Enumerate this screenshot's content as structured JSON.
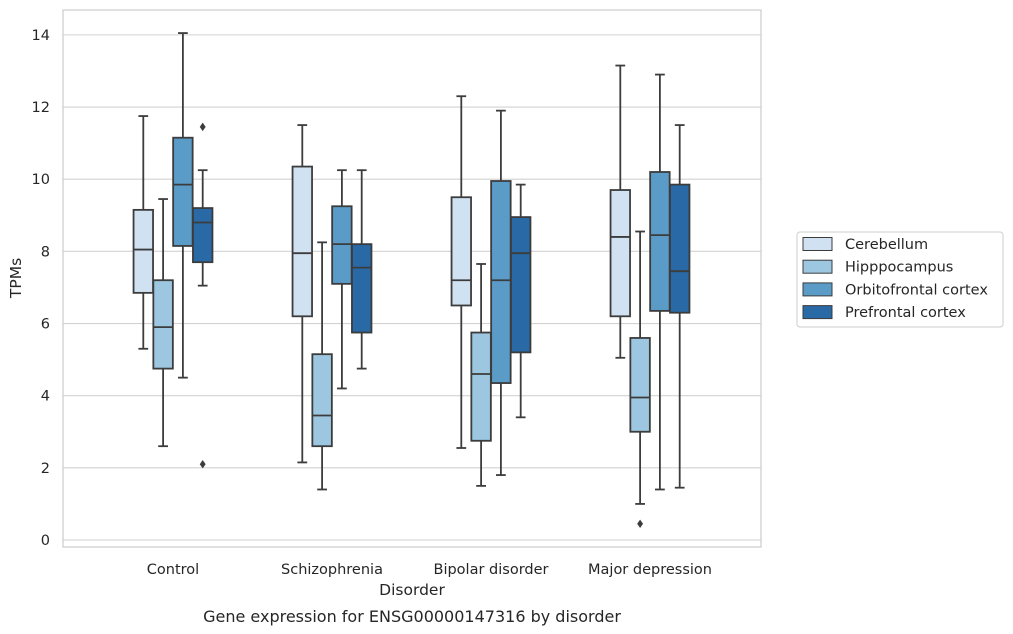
{
  "chart_data": {
    "type": "boxplot",
    "title": "Gene expression for ENSG00000147316 by disorder",
    "xlabel": "Disorder",
    "ylabel": "TPMs",
    "ylim": [
      -0.2,
      14.7
    ],
    "yticks": [
      0,
      2,
      4,
      6,
      8,
      10,
      12,
      14
    ],
    "grid": true,
    "legend_position": "right",
    "categories": [
      "Control",
      "Schizophrenia",
      "Bipolar disorder",
      "Major depression"
    ],
    "series": [
      {
        "name": "Cerebellum",
        "color": "#d0e2f2",
        "boxes": [
          {
            "whislo": 5.3,
            "q1": 6.85,
            "med": 8.05,
            "q3": 9.15,
            "whishi": 11.75,
            "fliers": []
          },
          {
            "whislo": 2.15,
            "q1": 6.2,
            "med": 7.95,
            "q3": 10.35,
            "whishi": 11.5,
            "fliers": []
          },
          {
            "whislo": 2.55,
            "q1": 6.5,
            "med": 7.2,
            "q3": 9.5,
            "whishi": 12.3,
            "fliers": []
          },
          {
            "whislo": 5.05,
            "q1": 6.2,
            "med": 8.4,
            "q3": 9.7,
            "whishi": 13.15,
            "fliers": []
          }
        ]
      },
      {
        "name": "Hipppocampus",
        "color": "#9dc6e0",
        "boxes": [
          {
            "whislo": 2.6,
            "q1": 4.75,
            "med": 5.9,
            "q3": 7.2,
            "whishi": 9.45,
            "fliers": []
          },
          {
            "whislo": 1.4,
            "q1": 2.6,
            "med": 3.45,
            "q3": 5.15,
            "whishi": 8.25,
            "fliers": []
          },
          {
            "whislo": 1.5,
            "q1": 2.75,
            "med": 4.6,
            "q3": 5.75,
            "whishi": 7.65,
            "fliers": []
          },
          {
            "whislo": 1.0,
            "q1": 3.0,
            "med": 3.95,
            "q3": 5.6,
            "whishi": 8.55,
            "fliers": [
              0.45
            ]
          }
        ]
      },
      {
        "name": "Orbitofrontal cortex",
        "color": "#5a9bc8",
        "boxes": [
          {
            "whislo": 4.5,
            "q1": 8.15,
            "med": 9.85,
            "q3": 11.15,
            "whishi": 14.05,
            "fliers": []
          },
          {
            "whislo": 4.2,
            "q1": 7.1,
            "med": 8.2,
            "q3": 9.25,
            "whishi": 10.25,
            "fliers": []
          },
          {
            "whislo": 1.8,
            "q1": 4.35,
            "med": 7.2,
            "q3": 9.95,
            "whishi": 11.9,
            "fliers": []
          },
          {
            "whislo": 1.4,
            "q1": 6.35,
            "med": 8.45,
            "q3": 10.2,
            "whishi": 12.9,
            "fliers": []
          }
        ]
      },
      {
        "name": "Prefrontal cortex",
        "color": "#2869a6",
        "boxes": [
          {
            "whislo": 7.05,
            "q1": 7.7,
            "med": 8.8,
            "q3": 9.2,
            "whishi": 10.25,
            "fliers": [
              11.45,
              2.1
            ]
          },
          {
            "whislo": 4.75,
            "q1": 5.75,
            "med": 7.55,
            "q3": 8.2,
            "whishi": 10.25,
            "fliers": []
          },
          {
            "whislo": 3.4,
            "q1": 5.2,
            "med": 7.95,
            "q3": 8.95,
            "whishi": 9.85,
            "fliers": []
          },
          {
            "whislo": 1.45,
            "q1": 6.3,
            "med": 7.45,
            "q3": 9.85,
            "whishi": 11.5,
            "fliers": []
          }
        ]
      }
    ]
  }
}
